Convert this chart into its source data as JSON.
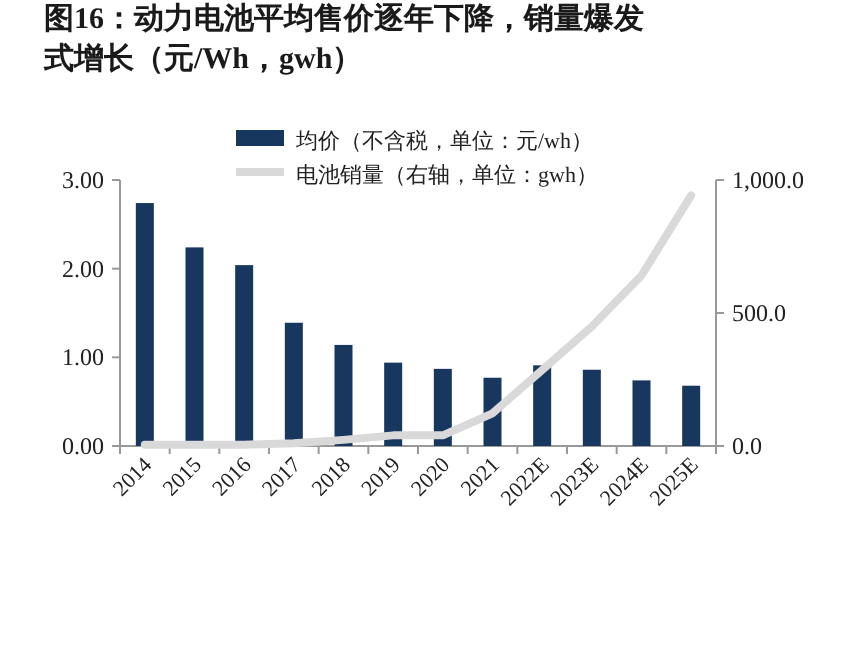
{
  "chart_data": {
    "type": "bar",
    "title": "图16：动力电池平均售价逐年下降，销量爆发式增长（元/Wh，gwh）",
    "categories": [
      "2014",
      "2015",
      "2016",
      "2017",
      "2018",
      "2019",
      "2020",
      "2021",
      "2022E",
      "2023E",
      "2024E",
      "2025E"
    ],
    "series": [
      {
        "name": "均价（不含税，单位：元/wh）",
        "color": "#17375e",
        "values": [
          2.74,
          2.24,
          2.04,
          1.39,
          1.14,
          0.94,
          0.87,
          0.77,
          0.91,
          0.86,
          0.74,
          0.68
        ]
      },
      {
        "name": "电池销量（右轴，单位：gwh）",
        "type": "line",
        "axis": "y2",
        "color": "#d9d9d9",
        "values": [
          5,
          5,
          5,
          10,
          23,
          40,
          40,
          123,
          286,
          449,
          641,
          942
        ]
      }
    ],
    "ylim": [
      0,
      3
    ],
    "yticks": [
      {
        "value": 0,
        "label": "0.00"
      },
      {
        "value": 1,
        "label": "1.00"
      },
      {
        "value": 2,
        "label": "2.00"
      },
      {
        "value": 3,
        "label": "3.00"
      }
    ],
    "y2lim": [
      0,
      1000
    ],
    "y2ticks": [
      {
        "value": 0,
        "label": "0.0"
      },
      {
        "value": 500,
        "label": "500.0"
      },
      {
        "value": 1000,
        "label": "1,000.0"
      }
    ],
    "legend": "top right",
    "grid": false
  }
}
